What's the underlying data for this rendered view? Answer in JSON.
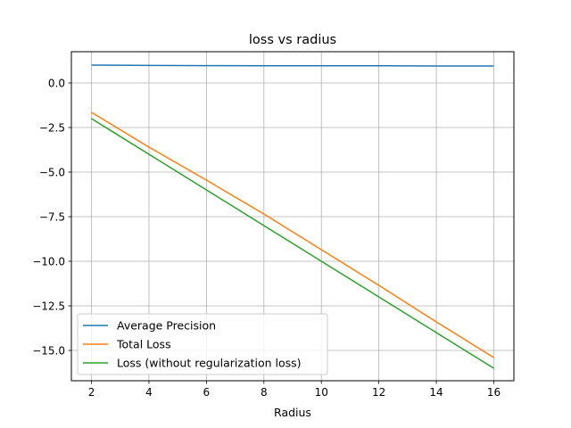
{
  "chart_data": {
    "type": "line",
    "title": "loss vs radius",
    "xlabel": "Radius",
    "ylabel": "",
    "x": [
      2,
      4,
      6,
      8,
      10,
      12,
      14,
      16
    ],
    "xlim": [
      1.3,
      16.7
    ],
    "ylim": [
      -16.7,
      1.75
    ],
    "xticks": [
      2,
      4,
      6,
      8,
      10,
      12,
      14,
      16
    ],
    "yticks": [
      0.0,
      -2.5,
      -5.0,
      -7.5,
      -10.0,
      -12.5,
      -15.0
    ],
    "ytick_labels": [
      "0.0",
      "−2.5",
      "−5.0",
      "−7.5",
      "−10.0",
      "−12.5",
      "−15.0"
    ],
    "grid": true,
    "legend_position": "lower-left",
    "series": [
      {
        "name": "Average Precision",
        "color": "#1f77b4",
        "values": [
          1.0,
          0.98,
          0.97,
          0.96,
          0.96,
          0.96,
          0.95,
          0.95
        ]
      },
      {
        "name": "Total Loss",
        "color": "#ff7f0e",
        "values": [
          -1.65,
          -3.6,
          -5.45,
          -7.35,
          -9.35,
          -11.35,
          -13.4,
          -15.4
        ]
      },
      {
        "name": "Loss (without regularization loss)",
        "color": "#2ca02c",
        "values": [
          -2.0,
          -4.0,
          -6.0,
          -8.0,
          -10.0,
          -12.0,
          -14.0,
          -16.0
        ]
      }
    ]
  }
}
